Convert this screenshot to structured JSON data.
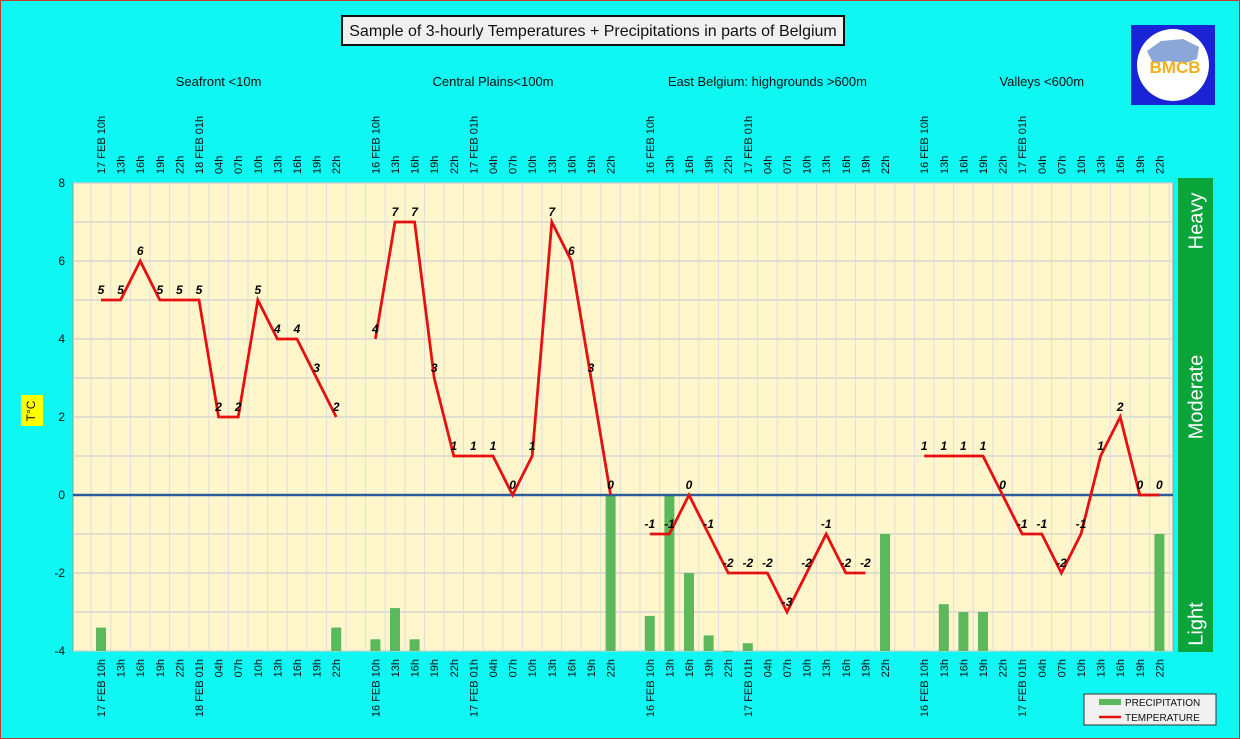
{
  "title": "Sample of 3-hourly Temperatures + Precipitations in parts of Belgium",
  "logo_text": "BMCB",
  "colors": {
    "background": "#0ff7f2",
    "plot_bg": "#fff6cc",
    "temperature": "#e61010",
    "precipitation": "#5cb85c",
    "band": "#0aa53a",
    "zero_line": "#2e5b9a",
    "logo_bg": "#1a23d6"
  },
  "chart_data": {
    "type": "bar",
    "ylabel": "T°C",
    "ylim": [
      -4,
      8
    ],
    "yticks": [
      "8",
      "6",
      "4",
      "2",
      "0",
      "-2",
      "-4"
    ],
    "intensity_bands": [
      "Heavy",
      "Moderate",
      "Light"
    ],
    "legend": [
      "PRECIPITATION",
      "TEMPERATURE"
    ],
    "regions": [
      {
        "name": "Seafront <10m",
        "x": [
          "17 FEB 10h",
          "13h",
          "16h",
          "19h",
          "22h",
          "18 FEB 01h",
          "04h",
          "07h",
          "10h",
          "13h",
          "16h",
          "19h",
          "22h"
        ],
        "temperature": [
          5,
          5,
          6,
          5,
          5,
          5,
          2,
          2,
          5,
          4,
          4,
          3,
          2
        ],
        "precipitation": [
          -3.4,
          null,
          null,
          null,
          null,
          null,
          null,
          null,
          null,
          null,
          null,
          null,
          -3.4
        ]
      },
      {
        "name": "Central Plains<100m",
        "x": [
          "16 FEB 10h",
          "13h",
          "16h",
          "19h",
          "22h",
          "17 FEB 01h",
          "04h",
          "07h",
          "10h",
          "13h",
          "16h",
          "19h",
          "22h"
        ],
        "temperature": [
          4,
          7,
          7,
          3,
          1,
          1,
          1,
          0,
          1,
          7,
          6,
          3,
          0
        ],
        "precipitation": [
          -3.7,
          -2.9,
          -3.7,
          null,
          null,
          null,
          null,
          null,
          null,
          null,
          null,
          null,
          0
        ]
      },
      {
        "name": "East Belgium:     highgrounds >600m",
        "x": [
          "16 FEB 10h",
          "13h",
          "16h",
          "19h",
          "22h",
          "17 FEB 01h",
          "04h",
          "07h",
          "10h",
          "13h",
          "16h",
          "19h",
          "22h"
        ],
        "temperature": [
          -1,
          -1,
          0,
          -1,
          -2,
          -2,
          -2,
          -3,
          -2,
          -1,
          -2,
          -2,
          null
        ],
        "precipitation": [
          -3.1,
          0,
          -2,
          -3.6,
          -4,
          -3.8,
          null,
          null,
          null,
          null,
          null,
          null,
          -1
        ]
      },
      {
        "name": "Valleys <600m",
        "x": [
          "16 FEB 10h",
          "13h",
          "16h",
          "19h",
          "22h",
          "17 FEB 01h",
          "04h",
          "07h",
          "10h",
          "13h",
          "16h",
          "19h",
          "22h"
        ],
        "temperature": [
          1,
          1,
          1,
          1,
          0,
          -1,
          -1,
          -2,
          -1,
          1,
          2,
          0,
          0
        ],
        "precipitation": [
          null,
          -2.8,
          -3,
          -3,
          null,
          null,
          null,
          null,
          null,
          null,
          null,
          null,
          -1
        ]
      }
    ]
  }
}
